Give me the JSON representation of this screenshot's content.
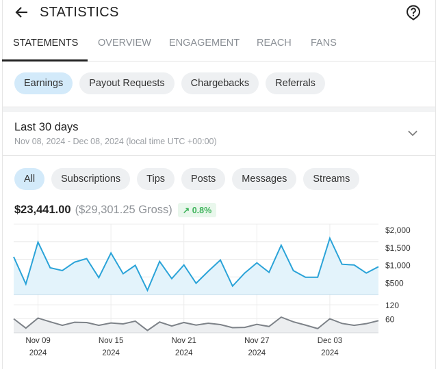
{
  "header": {
    "title": "STATISTICS",
    "back_icon": "arrow-left-icon",
    "help_icon": "help-circle-icon"
  },
  "tabs": [
    {
      "label": "STATEMENTS",
      "active": true
    },
    {
      "label": "OVERVIEW"
    },
    {
      "label": "ENGAGEMENT"
    },
    {
      "label": "REACH"
    },
    {
      "label": "FANS"
    }
  ],
  "statement_types": [
    {
      "label": "Earnings",
      "active": true
    },
    {
      "label": "Payout Requests"
    },
    {
      "label": "Chargebacks"
    },
    {
      "label": "Referrals"
    }
  ],
  "range": {
    "title": "Last 30 days",
    "subtitle": "Nov 08, 2024 - Dec 08, 2024 (local time UTC +00:00)"
  },
  "categories": [
    {
      "label": "All",
      "active": true
    },
    {
      "label": "Subscriptions"
    },
    {
      "label": "Tips"
    },
    {
      "label": "Posts"
    },
    {
      "label": "Messages"
    },
    {
      "label": "Streams"
    }
  ],
  "totals": {
    "net": "$23,441.00",
    "gross": "($29,301.25 Gross)",
    "change": "0.8%",
    "change_icon": "arrow-up-right-icon"
  },
  "colors": {
    "accent": "#2aa3d8",
    "area": "#e3f3fb",
    "secondary_line": "#7d8288",
    "secondary_area": "#eceef0",
    "chip_active": "#d3eafa",
    "positive": "#3db35a"
  },
  "chart_data": [
    {
      "type": "area",
      "ylim": [
        0,
        2000
      ],
      "yticks": [
        "$2,000",
        "$1,500",
        "$1,000",
        "$500"
      ],
      "ytick_values": [
        2000,
        1500,
        1000,
        500
      ],
      "values": [
        1070,
        300,
        1490,
        760,
        680,
        920,
        1020,
        480,
        1180,
        590,
        830,
        120,
        940,
        450,
        840,
        320,
        660,
        980,
        240,
        610,
        900,
        630,
        1400,
        680,
        490,
        490,
        1600,
        860,
        840,
        610,
        790
      ]
    },
    {
      "type": "area",
      "ylim": [
        0,
        120
      ],
      "yticks": [
        "120",
        "60"
      ],
      "ytick_values": [
        120,
        60
      ],
      "values": [
        60,
        20,
        63,
        47,
        32,
        45,
        44,
        32,
        42,
        38,
        50,
        10,
        46,
        29,
        44,
        33,
        41,
        35,
        22,
        23,
        36,
        27,
        67,
        47,
        33,
        18,
        60,
        40,
        32,
        39,
        52
      ]
    }
  ],
  "xaxis": {
    "ticks": [
      {
        "date": "Nov 09",
        "year": "2024",
        "index": 2
      },
      {
        "date": "Nov 15",
        "year": "2024",
        "index": 8
      },
      {
        "date": "Nov 21",
        "year": "2024",
        "index": 14
      },
      {
        "date": "Nov 27",
        "year": "2024",
        "index": 20
      },
      {
        "date": "Dec 03",
        "year": "2024",
        "index": 26
      }
    ]
  }
}
